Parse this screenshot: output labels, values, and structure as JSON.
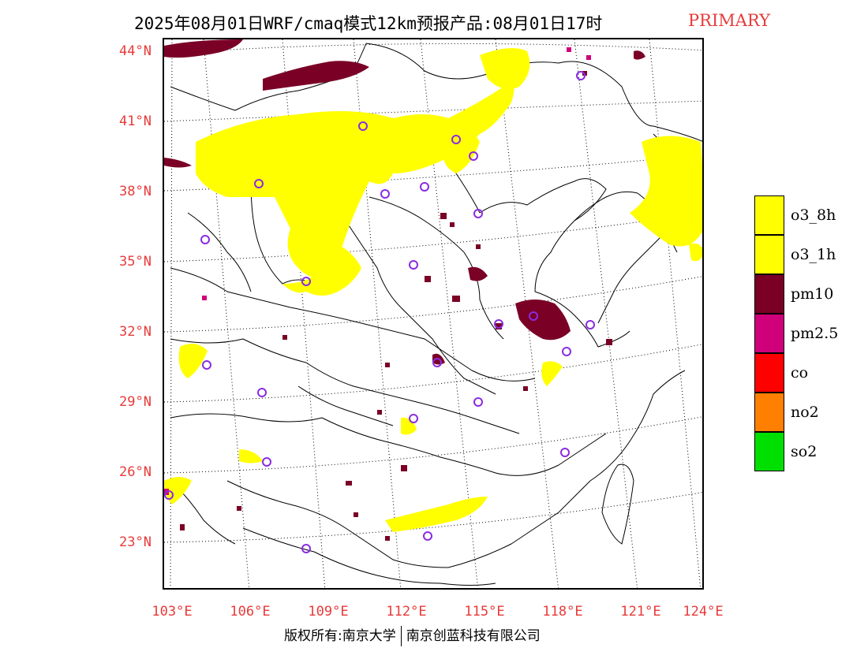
{
  "header": {
    "title": "2025年08月01日WRF/cmaq模式12km预报产品:08月01日17时",
    "tag": "PRIMARY"
  },
  "map": {
    "lat_labels": [
      "44°N",
      "41°N",
      "38°N",
      "35°N",
      "32°N",
      "29°N",
      "26°N",
      "23°N"
    ],
    "lon_labels": [
      "103°E",
      "106°E",
      "109°E",
      "112°E",
      "115°E",
      "118°E",
      "121°E",
      "124°E"
    ],
    "colors": {
      "o3": "#ffff00",
      "pm10": "#7a0026",
      "pm25": "#d0007a",
      "city_marker": "#8a2be2",
      "coast": "#000000",
      "grid": "#000000"
    }
  },
  "legend": {
    "items": [
      {
        "label": "o3_8h",
        "color": "#ffff00"
      },
      {
        "label": "o3_1h",
        "color": "#ffff00"
      },
      {
        "label": "pm10",
        "color": "#7a0026"
      },
      {
        "label": "pm2.5",
        "color": "#d0007a"
      },
      {
        "label": "co",
        "color": "#ff0000"
      },
      {
        "label": "no2",
        "color": "#ff7f00"
      },
      {
        "label": "so2",
        "color": "#00e000"
      }
    ]
  },
  "footer": {
    "left": "版权所有:南京大学",
    "right": "南京创蓝科技有限公司"
  }
}
